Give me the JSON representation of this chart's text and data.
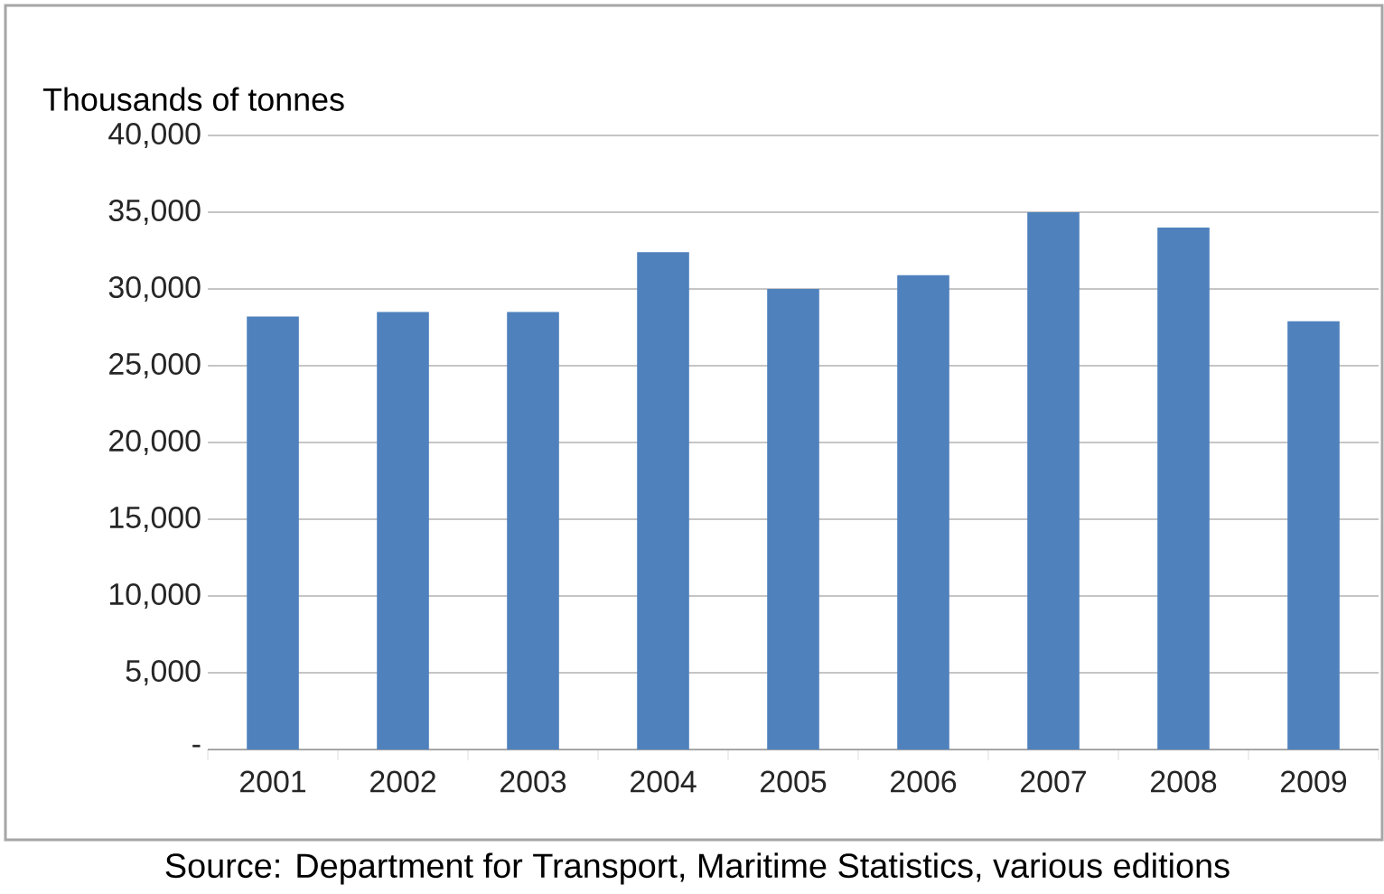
{
  "chart_data": {
    "type": "bar",
    "ylabel": "Thousands of tonnes",
    "categories": [
      "2001",
      "2002",
      "2003",
      "2004",
      "2005",
      "2006",
      "2007",
      "2008",
      "2009"
    ],
    "values": [
      28200,
      28500,
      28500,
      32400,
      30000,
      30900,
      35000,
      34000,
      27900
    ],
    "color": "#4f81bd",
    "ylim": [
      0,
      40000
    ],
    "yticks": [
      {
        "value": 0,
        "label": "-"
      },
      {
        "value": 5000,
        "label": "5,000"
      },
      {
        "value": 10000,
        "label": "10,000"
      },
      {
        "value": 15000,
        "label": "15,000"
      },
      {
        "value": 20000,
        "label": "20,000"
      },
      {
        "value": 25000,
        "label": "25,000"
      },
      {
        "value": 30000,
        "label": "30,000"
      },
      {
        "value": 35000,
        "label": "35,000"
      },
      {
        "value": 40000,
        "label": "40,000"
      }
    ],
    "grid": "y",
    "annotations": [
      "Source: Department for Transport, Maritime Statistics, various editions"
    ]
  }
}
